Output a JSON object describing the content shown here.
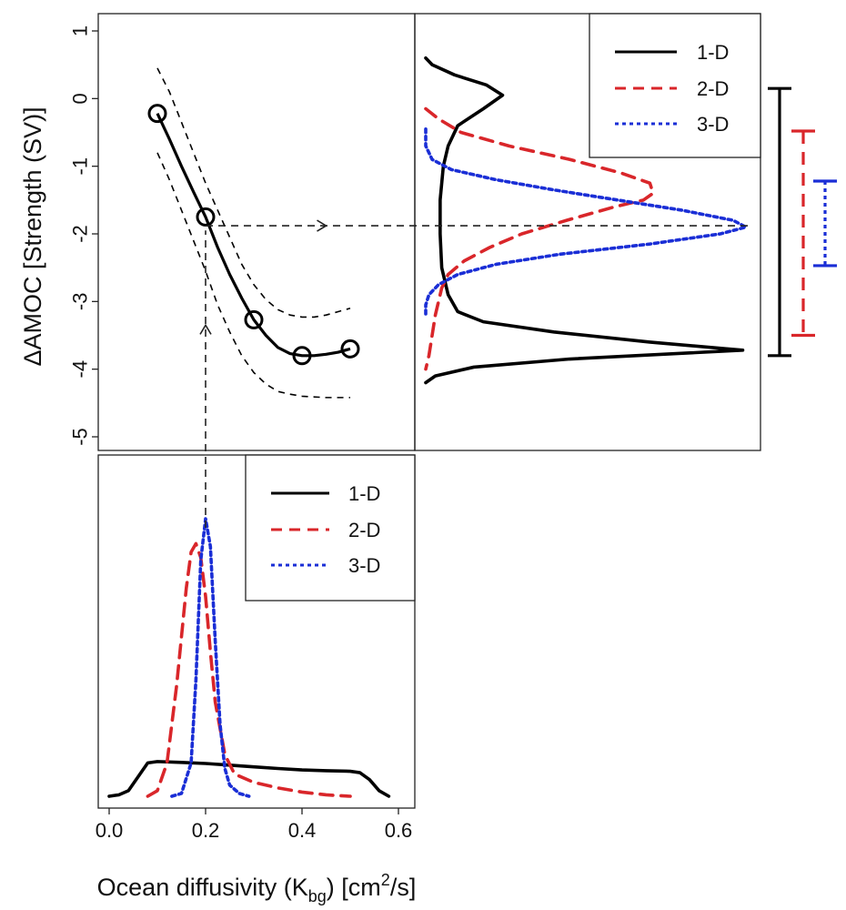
{
  "chart_data": [
    {
      "type": "line",
      "panel": "top-left",
      "xlabel": "",
      "ylabel": "ΔAMOC [Strength (SV)]",
      "xlim": [
        0,
        0.6
      ],
      "ylim": [
        -5.3,
        1.3
      ],
      "y_ticks": [
        1,
        0,
        -1,
        -2,
        -3,
        -4,
        -5
      ],
      "y_tick_labels": [
        "1",
        "0",
        "-1",
        "-2",
        "-3",
        "-4",
        "-5"
      ],
      "series": [
        {
          "role": "emulator-mean",
          "style": "solid-black",
          "x": [
            0.1,
            0.125,
            0.15,
            0.175,
            0.2,
            0.225,
            0.25,
            0.275,
            0.3,
            0.325,
            0.35,
            0.375,
            0.4,
            0.425,
            0.45,
            0.475,
            0.5
          ],
          "y": [
            -0.22,
            -0.6,
            -1.0,
            -1.38,
            -1.75,
            -2.2,
            -2.6,
            -2.95,
            -3.27,
            -3.5,
            -3.68,
            -3.77,
            -3.8,
            -3.8,
            -3.78,
            -3.75,
            -3.7
          ]
        },
        {
          "role": "upper-bound",
          "style": "dashed-black",
          "x": [
            0.1,
            0.125,
            0.15,
            0.175,
            0.2,
            0.225,
            0.25,
            0.275,
            0.3,
            0.325,
            0.35,
            0.375,
            0.4,
            0.425,
            0.45,
            0.475,
            0.5
          ],
          "y": [
            0.45,
            0.1,
            -0.35,
            -0.8,
            -1.25,
            -1.65,
            -2.05,
            -2.45,
            -2.75,
            -2.97,
            -3.12,
            -3.2,
            -3.23,
            -3.23,
            -3.2,
            -3.15,
            -3.1
          ]
        },
        {
          "role": "lower-bound",
          "style": "dashed-black",
          "x": [
            0.1,
            0.125,
            0.15,
            0.175,
            0.2,
            0.225,
            0.25,
            0.275,
            0.3,
            0.325,
            0.35,
            0.375,
            0.4,
            0.425,
            0.45,
            0.475,
            0.5
          ],
          "y": [
            -0.8,
            -1.2,
            -1.65,
            -2.1,
            -2.55,
            -3.05,
            -3.45,
            -3.8,
            -4.05,
            -4.22,
            -4.33,
            -4.37,
            -4.4,
            -4.41,
            -4.42,
            -4.42,
            -4.42
          ]
        }
      ],
      "points": {
        "x": [
          0.1,
          0.2,
          0.3,
          0.4,
          0.5
        ],
        "y": [
          -0.22,
          -1.75,
          -3.27,
          -3.8,
          -3.7
        ]
      },
      "arrows": [
        {
          "from": [
            0.2,
            -5.3
          ],
          "to": [
            0.2,
            -3.35
          ]
        },
        {
          "from": [
            0.2,
            -1.88
          ],
          "to": [
            0.45,
            -1.88
          ]
        }
      ]
    },
    {
      "type": "line",
      "panel": "top-right",
      "orientation": "horizontal-density",
      "ylim": [
        -5.3,
        1.3
      ],
      "legend": {
        "placement": "top-right",
        "entries": [
          "1-D",
          "2-D",
          "3-D"
        ]
      },
      "series": [
        {
          "name": "1-D",
          "color": "#000000",
          "style": "solid",
          "y": [
            0.6,
            0.5,
            0.35,
            0.2,
            0.05,
            -0.15,
            -0.4,
            -0.7,
            -1.0,
            -1.5,
            -2.0,
            -2.5,
            -2.9,
            -3.15,
            -3.3,
            -3.45,
            -3.6,
            -3.72,
            -3.85,
            -3.97,
            -4.1,
            -4.2
          ],
          "density": [
            0.0,
            0.02,
            0.09,
            0.19,
            0.24,
            0.18,
            0.1,
            0.07,
            0.055,
            0.045,
            0.045,
            0.05,
            0.07,
            0.1,
            0.18,
            0.4,
            0.7,
            0.99,
            0.45,
            0.15,
            0.03,
            0.0
          ]
        },
        {
          "name": "2-D",
          "color": "#d9262a",
          "style": "dashed",
          "y": [
            -0.15,
            -0.3,
            -0.5,
            -0.7,
            -0.9,
            -1.1,
            -1.25,
            -1.4,
            -1.5,
            -1.6,
            -1.8,
            -2.0,
            -2.2,
            -2.4,
            -2.6,
            -2.8,
            -3.0,
            -3.2,
            -3.5,
            -3.8,
            -4.0
          ],
          "density": [
            0.0,
            0.04,
            0.11,
            0.26,
            0.45,
            0.61,
            0.7,
            0.71,
            0.68,
            0.59,
            0.44,
            0.3,
            0.2,
            0.12,
            0.07,
            0.05,
            0.04,
            0.03,
            0.02,
            0.01,
            0.0
          ]
        },
        {
          "name": "3-D",
          "color": "#1a2ed6",
          "style": "dotted",
          "y": [
            -0.45,
            -0.7,
            -0.9,
            -1.05,
            -1.2,
            -1.35,
            -1.5,
            -1.65,
            -1.8,
            -1.9,
            -2.0,
            -2.15,
            -2.3,
            -2.45,
            -2.6,
            -2.75,
            -2.9,
            -3.05,
            -3.2
          ],
          "density": [
            0.0,
            0.0,
            0.02,
            0.08,
            0.22,
            0.4,
            0.6,
            0.8,
            0.96,
            1.0,
            0.92,
            0.7,
            0.42,
            0.22,
            0.1,
            0.04,
            0.01,
            0.0,
            0.0
          ]
        }
      ],
      "horizontal_reference": -1.88
    },
    {
      "type": "line",
      "panel": "right-intervals",
      "series": [
        {
          "name": "1-D",
          "color": "#000000",
          "style": "solid",
          "low": -3.8,
          "high": 0.15
        },
        {
          "name": "2-D",
          "color": "#d9262a",
          "style": "dashed",
          "low": -3.5,
          "high": -0.48
        },
        {
          "name": "3-D",
          "color": "#1a2ed6",
          "style": "dotted",
          "low": -2.47,
          "high": -1.22
        }
      ]
    },
    {
      "type": "line",
      "panel": "bottom-left",
      "xlabel": "Ocean diffusivity (K",
      "xlabel_sub": "bg",
      "xlabel_mid": ") [cm",
      "xlabel_sup": "2",
      "xlabel_end": "/s]",
      "xlim": [
        -0.01,
        0.62
      ],
      "x_ticks": [
        0.0,
        0.2,
        0.4,
        0.6
      ],
      "x_tick_labels": [
        "0.0",
        "0.2",
        "0.4",
        "0.6"
      ],
      "legend": {
        "placement": "top-right",
        "entries": [
          "1-D",
          "2-D",
          "3-D"
        ]
      },
      "series": [
        {
          "name": "1-D",
          "color": "#000000",
          "style": "solid",
          "x": [
            0.0,
            0.02,
            0.04,
            0.06,
            0.08,
            0.1,
            0.15,
            0.2,
            0.25,
            0.3,
            0.35,
            0.4,
            0.45,
            0.5,
            0.52,
            0.54,
            0.56,
            0.58
          ],
          "density": [
            0.0,
            0.005,
            0.02,
            0.07,
            0.12,
            0.125,
            0.122,
            0.118,
            0.112,
            0.106,
            0.1,
            0.095,
            0.092,
            0.09,
            0.085,
            0.06,
            0.02,
            0.0
          ]
        },
        {
          "name": "2-D",
          "color": "#d9262a",
          "style": "dashed",
          "x": [
            0.08,
            0.1,
            0.12,
            0.14,
            0.16,
            0.17,
            0.18,
            0.19,
            0.2,
            0.21,
            0.22,
            0.24,
            0.26,
            0.3,
            0.35,
            0.4,
            0.45,
            0.5
          ],
          "density": [
            0.0,
            0.02,
            0.12,
            0.4,
            0.75,
            0.88,
            0.91,
            0.86,
            0.72,
            0.52,
            0.34,
            0.15,
            0.08,
            0.05,
            0.03,
            0.015,
            0.005,
            0.0
          ]
        },
        {
          "name": "3-D",
          "color": "#1a2ed6",
          "style": "dotted",
          "x": [
            0.13,
            0.15,
            0.17,
            0.18,
            0.19,
            0.2,
            0.21,
            0.22,
            0.23,
            0.24,
            0.25,
            0.27,
            0.29
          ],
          "density": [
            0.0,
            0.01,
            0.12,
            0.42,
            0.85,
            1.0,
            0.9,
            0.56,
            0.26,
            0.1,
            0.04,
            0.01,
            0.0
          ]
        }
      ],
      "vertical_reference": 0.2
    }
  ]
}
